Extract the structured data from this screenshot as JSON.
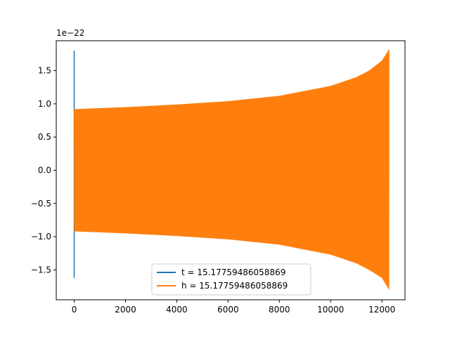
{
  "chart_data": {
    "type": "line",
    "title": "",
    "xlabel": "",
    "ylabel": "",
    "scale_label": "1e−22",
    "xlim": [
      -700,
      12900
    ],
    "ylim": [
      -1.95,
      1.95
    ],
    "xticks": [
      0,
      2000,
      4000,
      6000,
      8000,
      10000,
      12000
    ],
    "xtick_labels": [
      "0",
      "2000",
      "4000",
      "6000",
      "8000",
      "10000",
      "12000"
    ],
    "yticks": [
      -1.5,
      -1.0,
      -0.5,
      0.0,
      0.5,
      1.0,
      1.5
    ],
    "ytick_labels": [
      "−1.5",
      "−1.0",
      "−0.5",
      "0.0",
      "0.5",
      "1.0",
      "1.5"
    ],
    "grid": false,
    "legend_position": "lower-center",
    "series": [
      {
        "name": "t = 15.17759486058869",
        "color": "#1f77b4",
        "spike": {
          "x": 0,
          "ymin": -1.62,
          "ymax": 1.8
        },
        "envelope": [
          [
            0,
            0.92
          ],
          [
            12280,
            1.82
          ]
        ]
      },
      {
        "name": "h = 15.17759486058869",
        "color": "#ff7f0e",
        "envelope_upper": [
          [
            0,
            0.92
          ],
          [
            2000,
            0.95
          ],
          [
            4000,
            0.99
          ],
          [
            6000,
            1.04
          ],
          [
            8000,
            1.12
          ],
          [
            10000,
            1.27
          ],
          [
            11000,
            1.4
          ],
          [
            11500,
            1.5
          ],
          [
            12000,
            1.65
          ],
          [
            12280,
            1.82
          ]
        ],
        "envelope_lower": [
          [
            0,
            -0.92
          ],
          [
            2000,
            -0.95
          ],
          [
            4000,
            -0.99
          ],
          [
            6000,
            -1.04
          ],
          [
            8000,
            -1.12
          ],
          [
            10000,
            -1.27
          ],
          [
            11000,
            -1.4
          ],
          [
            11500,
            -1.5
          ],
          [
            12000,
            -1.62
          ],
          [
            12280,
            -1.8
          ]
        ]
      }
    ]
  }
}
